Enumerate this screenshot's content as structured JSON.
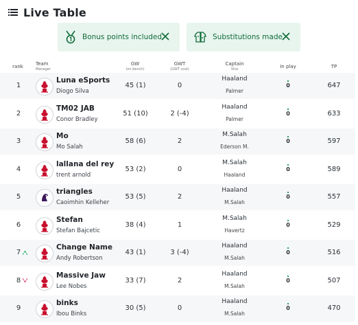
{
  "header": {
    "title": "Live Table"
  },
  "chips": [
    {
      "label": "Bonus points included"
    },
    {
      "label": "Substitutions made"
    }
  ],
  "columns": {
    "rank": "rank",
    "team": "Team",
    "manager": "Manager",
    "gw": "GW",
    "gw_sub": "(on bench)",
    "gwt": "GWT",
    "gwt_sub": "(GWT cost)",
    "captain": "Captain",
    "vice": "Vice",
    "in_play": "In play",
    "tp": "TP"
  },
  "rows": [
    {
      "rank": "1",
      "move": "none",
      "team": "Luna eSports",
      "manager": "Diogo Silva",
      "gw": "45 (1)",
      "gwt": "0",
      "captain": "Haaland",
      "vice": "Palmer",
      "in_play": "0",
      "tp": "647",
      "crest": "liverpool"
    },
    {
      "rank": "2",
      "move": "none",
      "team": "TM02 JAB",
      "manager": "Conor Bradley",
      "gw": "51 (10)",
      "gwt": "2 (-4)",
      "captain": "Haaland",
      "vice": "Palmer",
      "in_play": "0",
      "tp": "633",
      "crest": "liverpool"
    },
    {
      "rank": "3",
      "move": "none",
      "team": "Mo",
      "manager": "Mo Salah",
      "gw": "58 (6)",
      "gwt": "2",
      "captain": "M.Salah",
      "vice": "Ederson M.",
      "in_play": "0",
      "tp": "597",
      "crest": "liverpool"
    },
    {
      "rank": "4",
      "move": "none",
      "team": "lallana del rey",
      "manager": "trent arnold",
      "gw": "53 (2)",
      "gwt": "0",
      "captain": "M.Salah",
      "vice": "Haaland",
      "in_play": "0",
      "tp": "589",
      "crest": "liverpool"
    },
    {
      "rank": "5",
      "move": "none",
      "team": "triangles",
      "manager": "Caoimhin Kelleher",
      "gw": "53 (5)",
      "gwt": "2",
      "captain": "Haaland",
      "vice": "M.Salah",
      "in_play": "0",
      "tp": "557",
      "crest": "premier"
    },
    {
      "rank": "6",
      "move": "none",
      "team": "Stefan",
      "manager": "Stefan Bajcetic",
      "gw": "38 (4)",
      "gwt": "1",
      "captain": "M.Salah",
      "vice": "Havertz",
      "in_play": "0",
      "tp": "529",
      "crest": "liverpool"
    },
    {
      "rank": "7",
      "move": "up",
      "team": "Change Name",
      "manager": "Andy Robertson",
      "gw": "43 (1)",
      "gwt": "3 (-4)",
      "captain": "Haaland",
      "vice": "M.Salah",
      "in_play": "0",
      "tp": "516",
      "crest": "liverpool"
    },
    {
      "rank": "8",
      "move": "down",
      "team": "Massive Jaw",
      "manager": "Lee Nobes",
      "gw": "33 (7)",
      "gwt": "2",
      "captain": "Haaland",
      "vice": "M.Salah",
      "in_play": "0",
      "tp": "507",
      "crest": "liverpool"
    },
    {
      "rank": "9",
      "move": "none",
      "team": "binks",
      "manager": "Ibou Binks",
      "gw": "30 (5)",
      "gwt": "0",
      "captain": "Haaland",
      "vice": "M.Salah",
      "in_play": "0",
      "tp": "470",
      "crest": "liverpool"
    }
  ],
  "colors": {
    "accent": "#1e9e5a",
    "chip_bg": "#e8f5ee",
    "chip_text": "#0f6b39",
    "up": "#2bb673",
    "down": "#e0457b",
    "crest_red": "#c8102e",
    "premier": "#3d195b"
  }
}
